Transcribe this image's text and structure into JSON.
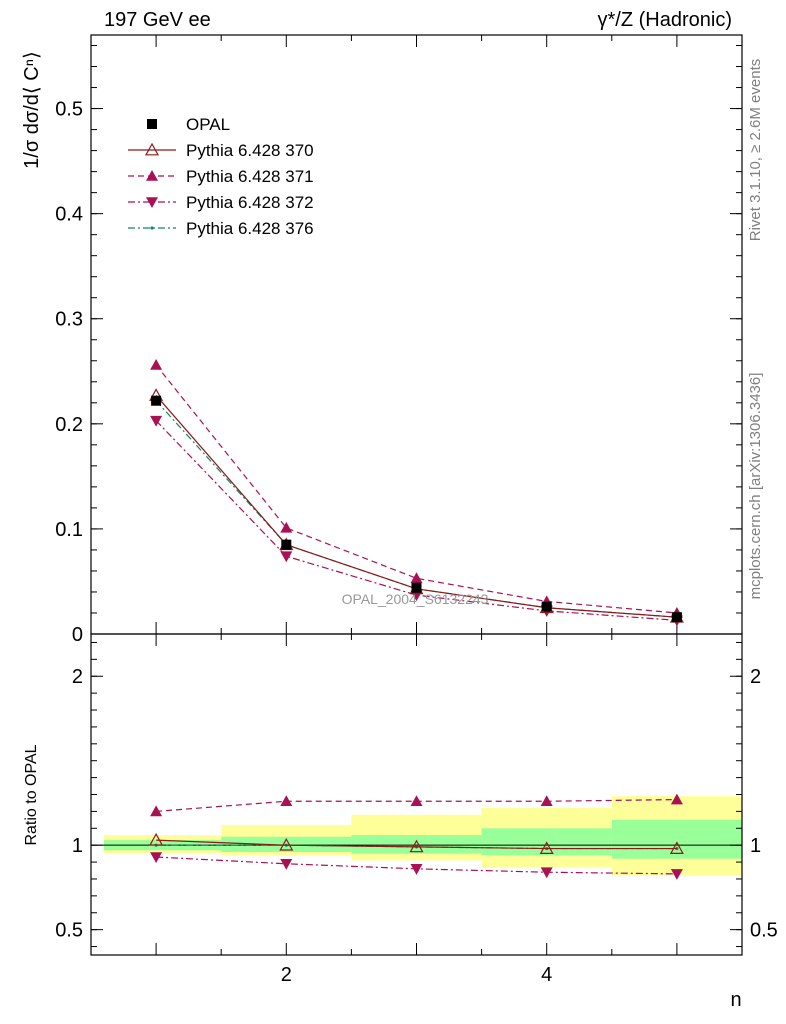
{
  "chart_data": [
    {
      "type": "line",
      "header_left": "197 GeV ee",
      "header_right": "γ*/Z (Hadronic)",
      "ylabel": "1/σ dσ/d⟨ Cⁿ⟩",
      "xlim": [
        0.5,
        5.5
      ],
      "ylim": [
        0,
        0.57
      ],
      "yticks": [
        {
          "v": 0.0,
          "t": "0"
        },
        {
          "v": 0.1,
          "t": "0.1"
        },
        {
          "v": 0.2,
          "t": "0.2"
        },
        {
          "v": 0.3,
          "t": "0.3"
        },
        {
          "v": 0.4,
          "t": "0.4"
        },
        {
          "v": 0.5,
          "t": "0.5"
        }
      ],
      "x": [
        1,
        2,
        3,
        4,
        5
      ],
      "series": [
        {
          "name": "OPAL",
          "marker": "square",
          "values": [
            0.222,
            0.085,
            0.044,
            0.026,
            0.016
          ]
        },
        {
          "name": "Pythia 6.428 370",
          "marker": "triangle-up-open",
          "line": "solid",
          "color": "#8b1a1a",
          "values": [
            0.227,
            0.085,
            0.043,
            0.025,
            0.016
          ]
        },
        {
          "name": "Pythia 6.428 371",
          "marker": "triangle-up",
          "line": "dashed",
          "color": "#aa1155",
          "values": [
            0.256,
            0.101,
            0.053,
            0.031,
            0.02
          ]
        },
        {
          "name": "Pythia 6.428 372",
          "marker": "triangle-down",
          "line": "dashdot",
          "color": "#aa1155",
          "values": [
            0.203,
            0.074,
            0.037,
            0.022,
            0.013
          ]
        },
        {
          "name": "Pythia 6.428 376",
          "marker": "dot",
          "line": "dashdot",
          "color": "#118866",
          "values": [
            0.222,
            0.085,
            0.043,
            0.025,
            0.016
          ]
        }
      ],
      "watermark": "OPAL_2004_S6132243"
    },
    {
      "type": "line",
      "ylabel": "Ratio to OPAL",
      "xlabel": "n",
      "xlim": [
        0.5,
        5.5
      ],
      "ylim": [
        0.35,
        2.25
      ],
      "xticks": [
        2,
        4
      ],
      "yticks": [
        {
          "v": 0.5,
          "t": "0.5"
        },
        {
          "v": 1.0,
          "t": "1"
        },
        {
          "v": 2.0,
          "t": "2"
        }
      ],
      "x": [
        1,
        2,
        3,
        4,
        5
      ],
      "bands": [
        {
          "x0": 0.6,
          "x1": 1.5,
          "inner": [
            0.97,
            1.03
          ],
          "outer": [
            0.95,
            1.06
          ]
        },
        {
          "x0": 1.5,
          "x1": 2.5,
          "inner": [
            0.96,
            1.05
          ],
          "outer": [
            0.94,
            1.12
          ]
        },
        {
          "x0": 2.5,
          "x1": 3.5,
          "inner": [
            0.95,
            1.06
          ],
          "outer": [
            0.91,
            1.18
          ]
        },
        {
          "x0": 3.5,
          "x1": 4.5,
          "inner": [
            0.94,
            1.1
          ],
          "outer": [
            0.87,
            1.22
          ]
        },
        {
          "x0": 4.5,
          "x1": 5.5,
          "inner": [
            0.92,
            1.15
          ],
          "outer": [
            0.82,
            1.29
          ]
        }
      ],
      "series": [
        {
          "name": "Pythia 6.428 370",
          "marker": "triangle-up-open",
          "line": "solid",
          "color": "#8b1a1a",
          "values": [
            1.03,
            1.0,
            0.99,
            0.98,
            0.98
          ]
        },
        {
          "name": "Pythia 6.428 371",
          "marker": "triangle-up",
          "line": "dashed",
          "color": "#aa1155",
          "values": [
            1.2,
            1.26,
            1.26,
            1.26,
            1.27
          ]
        },
        {
          "name": "Pythia 6.428 372",
          "marker": "triangle-down",
          "line": "dashdot",
          "color": "#aa1155",
          "values": [
            0.93,
            0.89,
            0.86,
            0.84,
            0.83
          ]
        },
        {
          "name": "Pythia 6.428 376",
          "marker": "dot",
          "line": "dashdot",
          "color": "#118866",
          "values": [
            1.0,
            1.0,
            0.99,
            0.98,
            0.98
          ]
        }
      ]
    }
  ],
  "side_text": {
    "rivet": "Rivet 3.1.10, ≥ 2.6M events",
    "mcplots": "mcplots.cern.ch [arXiv:1306.3436]"
  },
  "colors": {
    "band_inner": "#99ff99",
    "band_outer": "#ffff99",
    "side_text": "#808080",
    "watermark": "#999999"
  }
}
